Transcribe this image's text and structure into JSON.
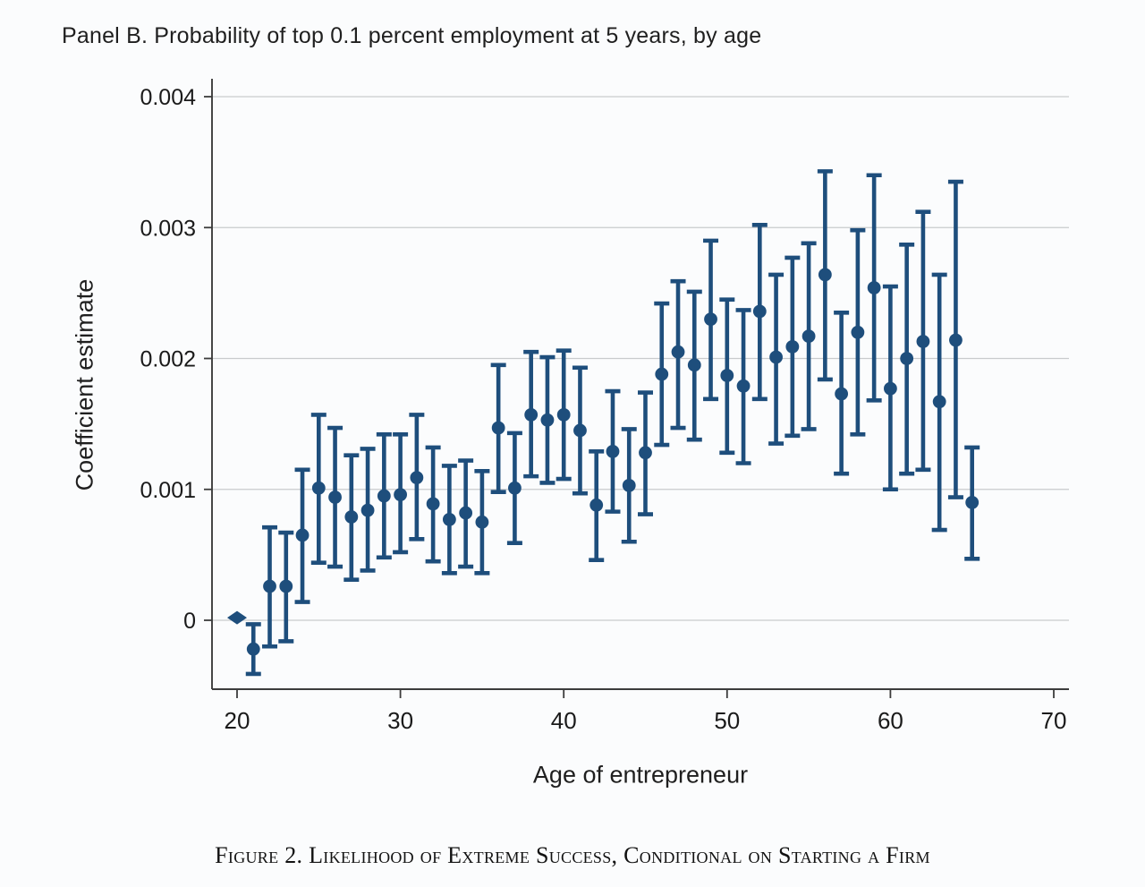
{
  "caption": "Figure 2. Likelihood of Extreme Success, Conditional on Starting a Firm",
  "chart_data": {
    "type": "scatter",
    "subtype": "coefficient-errorbar-plot",
    "title": "Panel B. Probability of top 0.1 percent employment at 5 years, by age",
    "xlabel": "Age of entrepreneur",
    "ylabel": "Coefficient estimate",
    "x_ticks": [
      20,
      30,
      40,
      50,
      60,
      70
    ],
    "y_ticks": [
      0,
      0.001,
      0.002,
      0.003,
      0.004
    ],
    "y_tick_labels": [
      "0",
      "0.001",
      "0.002",
      "0.003",
      "0.004"
    ],
    "xlim": [
      18.5,
      70.9
    ],
    "ylim": [
      -0.00052,
      0.004
    ],
    "grid": "horizontal",
    "legend": "none",
    "marker_color": "#1e4e7c",
    "grid_color": "#c9cbcd",
    "axis_color": "#3c3c3c",
    "points": [
      {
        "age": 20,
        "coef": 2e-05,
        "lo": null,
        "hi": null,
        "marker": "diamond"
      },
      {
        "age": 21,
        "coef": -0.00022,
        "lo": -0.00041,
        "hi": -3e-05
      },
      {
        "age": 22,
        "coef": 0.00026,
        "lo": -0.0002,
        "hi": 0.00071
      },
      {
        "age": 23,
        "coef": 0.00026,
        "lo": -0.00016,
        "hi": 0.00067
      },
      {
        "age": 24,
        "coef": 0.00065,
        "lo": 0.00014,
        "hi": 0.00115
      },
      {
        "age": 25,
        "coef": 0.00101,
        "lo": 0.00044,
        "hi": 0.00157
      },
      {
        "age": 26,
        "coef": 0.00094,
        "lo": 0.00041,
        "hi": 0.00147
      },
      {
        "age": 27,
        "coef": 0.00079,
        "lo": 0.00031,
        "hi": 0.00126
      },
      {
        "age": 28,
        "coef": 0.00084,
        "lo": 0.00038,
        "hi": 0.00131
      },
      {
        "age": 29,
        "coef": 0.00095,
        "lo": 0.00048,
        "hi": 0.00142
      },
      {
        "age": 30,
        "coef": 0.00096,
        "lo": 0.00052,
        "hi": 0.00142
      },
      {
        "age": 31,
        "coef": 0.00109,
        "lo": 0.00062,
        "hi": 0.00157
      },
      {
        "age": 32,
        "coef": 0.00089,
        "lo": 0.00045,
        "hi": 0.00132
      },
      {
        "age": 33,
        "coef": 0.00077,
        "lo": 0.00036,
        "hi": 0.00118
      },
      {
        "age": 34,
        "coef": 0.00082,
        "lo": 0.00041,
        "hi": 0.00122
      },
      {
        "age": 35,
        "coef": 0.00075,
        "lo": 0.00036,
        "hi": 0.00114
      },
      {
        "age": 36,
        "coef": 0.00147,
        "lo": 0.00098,
        "hi": 0.00195
      },
      {
        "age": 37,
        "coef": 0.00101,
        "lo": 0.00059,
        "hi": 0.00143
      },
      {
        "age": 38,
        "coef": 0.00157,
        "lo": 0.0011,
        "hi": 0.00205
      },
      {
        "age": 39,
        "coef": 0.00153,
        "lo": 0.00105,
        "hi": 0.00201
      },
      {
        "age": 40,
        "coef": 0.00157,
        "lo": 0.00108,
        "hi": 0.00206
      },
      {
        "age": 41,
        "coef": 0.00145,
        "lo": 0.00097,
        "hi": 0.00193
      },
      {
        "age": 42,
        "coef": 0.00088,
        "lo": 0.00046,
        "hi": 0.00129
      },
      {
        "age": 43,
        "coef": 0.00129,
        "lo": 0.00083,
        "hi": 0.00175
      },
      {
        "age": 44,
        "coef": 0.00103,
        "lo": 0.0006,
        "hi": 0.00146
      },
      {
        "age": 45,
        "coef": 0.00128,
        "lo": 0.00081,
        "hi": 0.00174
      },
      {
        "age": 46,
        "coef": 0.00188,
        "lo": 0.00134,
        "hi": 0.00242
      },
      {
        "age": 47,
        "coef": 0.00205,
        "lo": 0.00147,
        "hi": 0.00259
      },
      {
        "age": 48,
        "coef": 0.00195,
        "lo": 0.00138,
        "hi": 0.00251
      },
      {
        "age": 49,
        "coef": 0.0023,
        "lo": 0.00169,
        "hi": 0.0029
      },
      {
        "age": 50,
        "coef": 0.00187,
        "lo": 0.00128,
        "hi": 0.00245
      },
      {
        "age": 51,
        "coef": 0.00179,
        "lo": 0.0012,
        "hi": 0.00237
      },
      {
        "age": 52,
        "coef": 0.00236,
        "lo": 0.00169,
        "hi": 0.00302
      },
      {
        "age": 53,
        "coef": 0.00201,
        "lo": 0.00135,
        "hi": 0.00264
      },
      {
        "age": 54,
        "coef": 0.00209,
        "lo": 0.00141,
        "hi": 0.00277
      },
      {
        "age": 55,
        "coef": 0.00217,
        "lo": 0.00146,
        "hi": 0.00288
      },
      {
        "age": 56,
        "coef": 0.00264,
        "lo": 0.00184,
        "hi": 0.00343
      },
      {
        "age": 57,
        "coef": 0.00173,
        "lo": 0.00112,
        "hi": 0.00235
      },
      {
        "age": 58,
        "coef": 0.0022,
        "lo": 0.00142,
        "hi": 0.00298
      },
      {
        "age": 59,
        "coef": 0.00254,
        "lo": 0.00168,
        "hi": 0.0034
      },
      {
        "age": 60,
        "coef": 0.00177,
        "lo": 0.001,
        "hi": 0.00255
      },
      {
        "age": 61,
        "coef": 0.002,
        "lo": 0.00112,
        "hi": 0.00287
      },
      {
        "age": 62,
        "coef": 0.00213,
        "lo": 0.00115,
        "hi": 0.00312
      },
      {
        "age": 63,
        "coef": 0.00167,
        "lo": 0.00069,
        "hi": 0.00264
      },
      {
        "age": 64,
        "coef": 0.00214,
        "lo": 0.00094,
        "hi": 0.00335
      },
      {
        "age": 65,
        "coef": 0.0009,
        "lo": 0.00047,
        "hi": 0.00132
      }
    ]
  }
}
